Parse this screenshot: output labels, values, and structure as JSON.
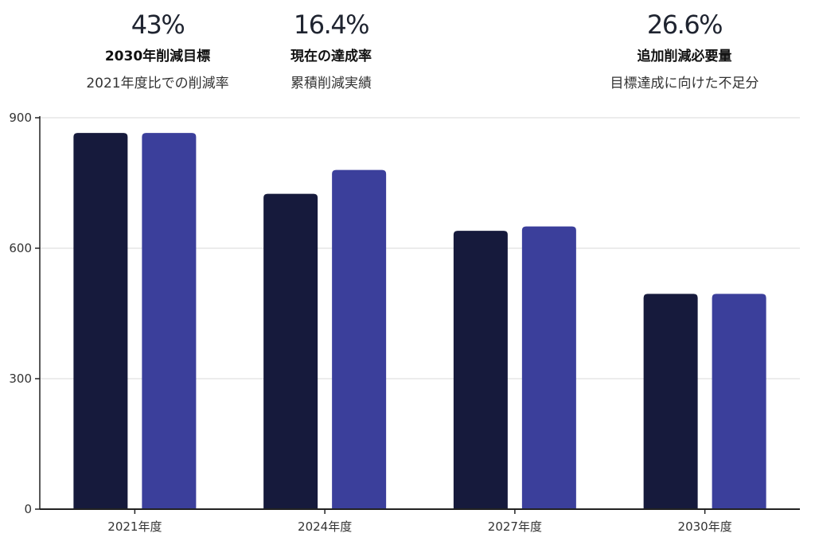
{
  "kpis": [
    {
      "value": "43%",
      "title": "2030年削減目標",
      "subtitle": "2021年度比での削減率"
    },
    {
      "value": "16.4%",
      "title": "現在の達成率",
      "subtitle": "累積削減実績"
    },
    {
      "value": "26.6%",
      "title": "追加削減必要量",
      "subtitle": "目標達成に向けた不足分"
    }
  ],
  "colors": {
    "series_1": "#161a3c",
    "series_2": "#3b3f9b",
    "grid": "#d9d9d9",
    "axis": "#222222"
  },
  "chart_data": {
    "type": "bar",
    "categories": [
      "2021年度",
      "2024年度",
      "2027年度",
      "2030年度"
    ],
    "series": [
      {
        "values": [
          865,
          725,
          640,
          495
        ]
      },
      {
        "values": [
          865,
          780,
          650,
          495
        ]
      }
    ],
    "ylim": [
      0,
      900
    ],
    "yticks": [
      0,
      300,
      600,
      900
    ],
    "grid": true,
    "legend": "none"
  }
}
